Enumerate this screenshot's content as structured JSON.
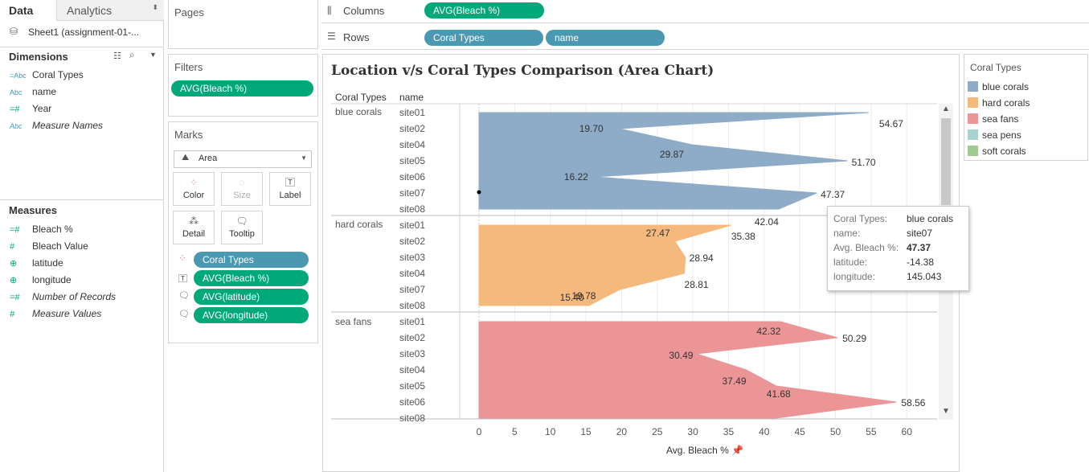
{
  "left_panel": {
    "tabs": [
      "Data",
      "Analytics"
    ],
    "datasource": "Sheet1 (assignment-01-...",
    "dimensions_title": "Dimensions",
    "dimensions": [
      {
        "label": "Coral Types",
        "icon": "=Abc"
      },
      {
        "label": "name",
        "icon": "Abc"
      },
      {
        "label": "Year",
        "icon": "=#"
      },
      {
        "label": "Measure Names",
        "icon": "Abc"
      }
    ],
    "measures_title": "Measures",
    "measures": [
      {
        "label": "Bleach %",
        "icon": "=#"
      },
      {
        "label": "Bleach Value",
        "icon": "#"
      },
      {
        "label": "latitude",
        "icon": "globe"
      },
      {
        "label": "longitude",
        "icon": "globe"
      },
      {
        "label": "Number of Records",
        "icon": "=#"
      },
      {
        "label": "Measure Values",
        "icon": "#"
      }
    ]
  },
  "pages": {
    "title": "Pages"
  },
  "filters": {
    "title": "Filters",
    "pills": [
      "AVG(Bleach %)"
    ]
  },
  "marks": {
    "title": "Marks",
    "type": "Area",
    "buttons": [
      "Color",
      "Size",
      "Label",
      "Detail",
      "Tooltip"
    ],
    "pills": [
      "Coral Types",
      "AVG(Bleach %)",
      "AVG(latitude)",
      "AVG(longitude)"
    ]
  },
  "shelves": {
    "columns_label": "Columns",
    "columns": [
      "AVG(Bleach %)"
    ],
    "rows_label": "Rows",
    "rows": [
      "Coral Types",
      "name"
    ]
  },
  "sheet": {
    "title": "Location v/s Coral Types Comparison (Area Chart)",
    "header_coral": "Coral Types",
    "header_name": "name"
  },
  "legend": {
    "title": "Coral Types",
    "items": [
      {
        "label": "blue corals",
        "color": "#8eabc7"
      },
      {
        "label": "hard corals",
        "color": "#f5b87d"
      },
      {
        "label": "sea fans",
        "color": "#eb9597"
      },
      {
        "label": "sea pens",
        "color": "#a9d3cf"
      },
      {
        "label": "soft corals",
        "color": "#9fcb93"
      }
    ]
  },
  "tooltip": {
    "rows": [
      {
        "k": "Coral Types:",
        "v": "blue corals"
      },
      {
        "k": "name:",
        "v": "site07"
      },
      {
        "k": "Avg. Bleach %:",
        "v": "47.37"
      },
      {
        "k": "latitude:",
        "v": "-14.38"
      },
      {
        "k": "longitude:",
        "v": "145.043"
      }
    ]
  },
  "chart_data": {
    "type": "area",
    "xlabel": "Avg. Bleach %",
    "xlim": [
      0,
      60
    ],
    "xticks": [
      "0",
      "5",
      "10",
      "15",
      "20",
      "25",
      "30",
      "35",
      "40",
      "45",
      "50",
      "55",
      "60"
    ],
    "groups": [
      {
        "name": "blue corals",
        "color": "#8eabc7",
        "sites": [
          "site01",
          "site02",
          "site04",
          "site05",
          "site06",
          "site07",
          "site08"
        ],
        "values": [
          54.67,
          19.7,
          29.87,
          51.7,
          16.22,
          47.37,
          42.04
        ],
        "labels": [
          "54.67",
          "19.70",
          "29.87",
          "51.70",
          "16.22",
          "47.37",
          "42.04"
        ]
      },
      {
        "name": "hard corals",
        "color": "#f5b87d",
        "sites": [
          "site01",
          "site02",
          "site03",
          "site04",
          "site07",
          "site08"
        ],
        "values": [
          35.38,
          27.47,
          28.94,
          28.81,
          19.78,
          15.4
        ],
        "labels": [
          "35.38",
          "27.47",
          "28.94",
          "28.81",
          "19.78",
          "15.40"
        ]
      },
      {
        "name": "sea fans",
        "color": "#eb9597",
        "sites": [
          "site01",
          "site02",
          "site03",
          "site04",
          "site05",
          "site06",
          "site08"
        ],
        "values": [
          42.32,
          50.29,
          30.49,
          37.49,
          41.68,
          58.56,
          41.68
        ],
        "labels": [
          "42.32",
          "50.29",
          "30.49",
          "37.49",
          "",
          "58.56",
          ""
        ],
        "extra_labels": [
          "41.68"
        ]
      }
    ]
  }
}
